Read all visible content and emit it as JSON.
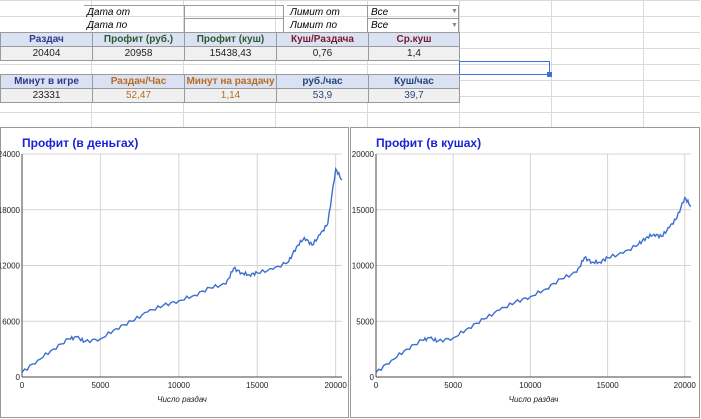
{
  "filters": {
    "date_from_label": "Дата от",
    "date_to_label": "Дата по",
    "limit_from_label": "Лимит от",
    "limit_to_label": "Лимит по",
    "limit_from_value": "Все",
    "limit_to_value": "Все"
  },
  "stats1": {
    "headers": [
      "Раздач",
      "Профит (руб.)",
      "Профит (куш)",
      "Куш/Раздача",
      "Ср.куш"
    ],
    "values": [
      "20404",
      "20958",
      "15438,43",
      "0,76",
      "1,4"
    ]
  },
  "stats2": {
    "headers": [
      "Минут в игре",
      "Раздач/Час",
      "Минут на раздачу",
      "руб./час",
      "Куш/час"
    ],
    "values": [
      "23331",
      "52,47",
      "1,14",
      "53,9",
      "39,7"
    ]
  },
  "colors": {
    "header_bg": "#d9e1f2",
    "header_text_1": [
      "#2f3a8a",
      "#2f5a2f",
      "#2f5a2f",
      "#7a1a2a",
      "#7a1a2a"
    ],
    "header_text_2": [
      "#2f3a8a",
      "#b86d1e",
      "#b86d1e",
      "#26467a",
      "#26467a"
    ],
    "value_bg": "#f0f0f0",
    "line": "#3c6fcf",
    "title": "#1a22d8"
  },
  "chart_data": [
    {
      "type": "line",
      "title": "Профит (в деньгах)",
      "xlabel": "Число раздач",
      "ylabel": "",
      "xlim": [
        0,
        20404
      ],
      "ylim": [
        0,
        24000
      ],
      "x_ticks": [
        "0",
        "5000",
        "10000",
        "15000",
        "20000"
      ],
      "y_ticks": [
        "0",
        "6000",
        "12000",
        "18000",
        "24000"
      ],
      "grid": true,
      "series": [
        {
          "x": [
            0,
            1000,
            2000,
            3000,
            3500,
            4000,
            5000,
            6000,
            7000,
            8000,
            9000,
            10000,
            11000,
            12000,
            13000,
            13500,
            14000,
            14500,
            15000,
            16000,
            17000,
            17500,
            18000,
            18500,
            19000,
            19500,
            20000,
            20404
          ],
          "y": [
            500,
            1800,
            3000,
            4100,
            4300,
            3800,
            4100,
            5200,
            6000,
            7000,
            7700,
            8200,
            8800,
            9600,
            10000,
            11700,
            11200,
            11000,
            11200,
            11600,
            12400,
            14000,
            15000,
            14200,
            15300,
            16500,
            22400,
            21200
          ]
        }
      ]
    },
    {
      "type": "line",
      "title": "Профит (в кушах)",
      "xlabel": "Число раздач",
      "ylabel": "",
      "xlim": [
        0,
        20404
      ],
      "ylim": [
        0,
        20000
      ],
      "x_ticks": [
        "0",
        "5000",
        "10000",
        "15000",
        "20000"
      ],
      "y_ticks": [
        "0",
        "5000",
        "10000",
        "15000",
        "20000"
      ],
      "grid": true,
      "series": [
        {
          "x": [
            0,
            1000,
            2000,
            3000,
            3500,
            4000,
            5000,
            6000,
            7000,
            8000,
            9000,
            10000,
            11000,
            12000,
            13000,
            13500,
            14000,
            14500,
            15000,
            16000,
            17000,
            17500,
            18000,
            18500,
            19000,
            19500,
            20000,
            20404
          ],
          "y": [
            400,
            1500,
            2500,
            3300,
            3500,
            3200,
            3500,
            4400,
            5200,
            6000,
            6700,
            7200,
            7900,
            8800,
            9400,
            10700,
            10300,
            10300,
            10700,
            11100,
            11900,
            12500,
            12800,
            12600,
            13400,
            14300,
            16100,
            15300
          ]
        }
      ]
    }
  ]
}
